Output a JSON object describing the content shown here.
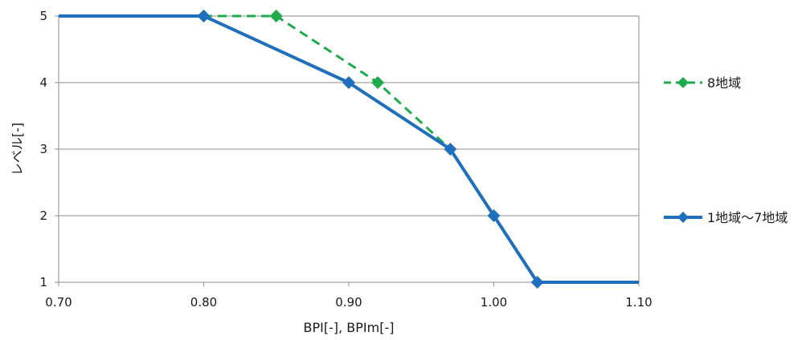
{
  "chart_data": {
    "type": "line",
    "title": "",
    "xlabel": "BPI[-], BPIm[-]",
    "ylabel": "レベル[-]",
    "xlim": [
      0.7,
      1.1
    ],
    "ylim": [
      1,
      5
    ],
    "x_ticks": [
      "0.70",
      "0.80",
      "0.90",
      "1.00",
      "1.10"
    ],
    "y_ticks": [
      "1",
      "2",
      "3",
      "4",
      "5"
    ],
    "grid": "horizontal",
    "legend_position": "right",
    "series": [
      {
        "name": "8地域",
        "color": "#1faa4b",
        "line_style": "dashed",
        "marker": "diamond",
        "x": [
          0.7,
          0.8,
          0.85,
          0.92,
          0.97,
          1.0,
          1.03,
          1.1
        ],
        "y": [
          5,
          5,
          5,
          4,
          3,
          2,
          1,
          1
        ],
        "marker_x": [
          0.8,
          0.85,
          0.92
        ]
      },
      {
        "name": "1地域～7地域",
        "color": "#1f6fbf",
        "line_style": "solid",
        "marker": "diamond",
        "x": [
          0.7,
          0.8,
          0.9,
          0.97,
          1.0,
          1.03,
          1.1
        ],
        "y": [
          5,
          5,
          4,
          3,
          2,
          1,
          1
        ],
        "marker_x": [
          0.8,
          0.9,
          0.97,
          1.0,
          1.03
        ]
      }
    ]
  }
}
